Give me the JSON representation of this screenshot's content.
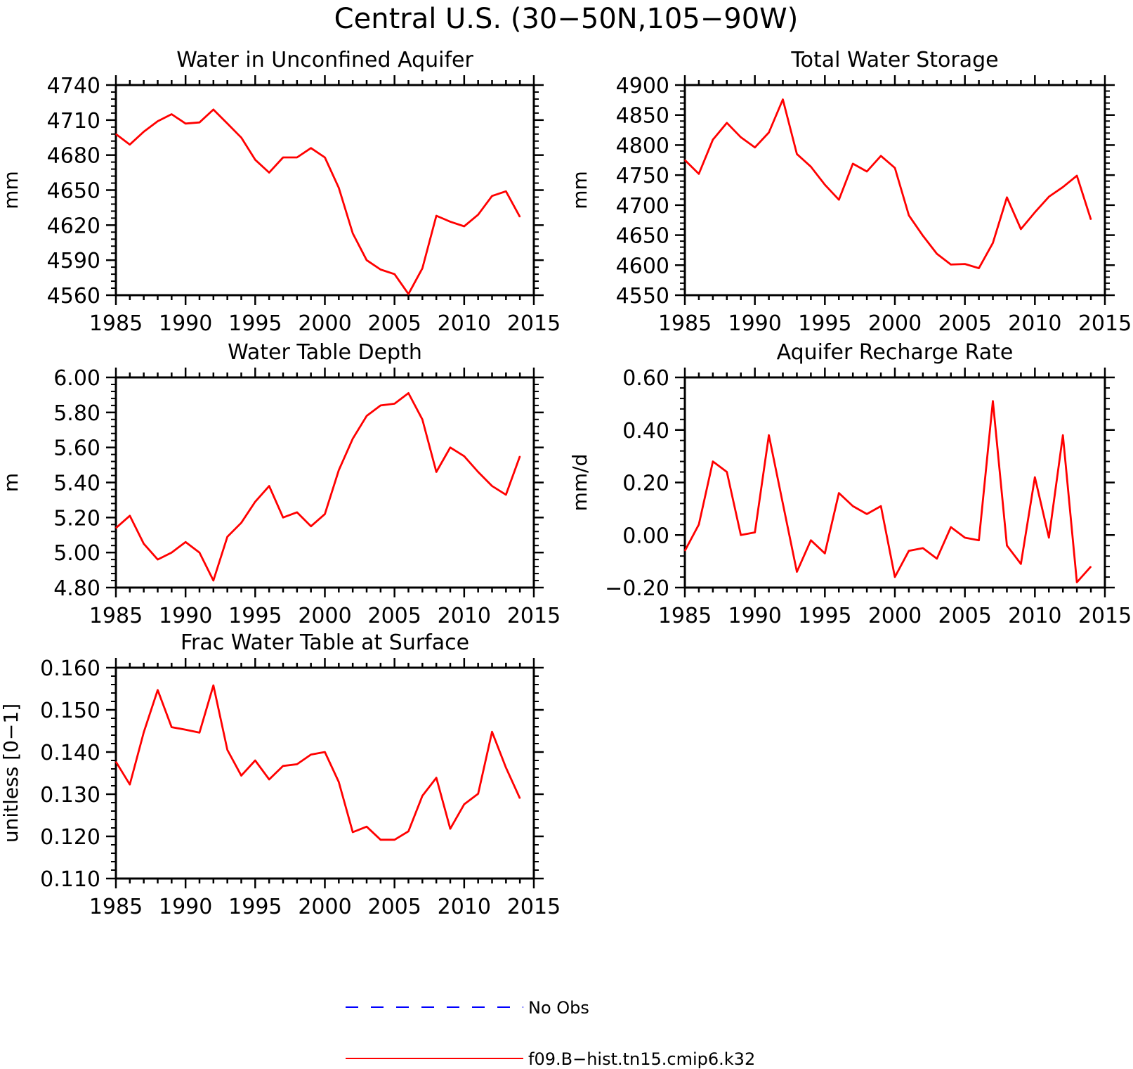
{
  "figure": {
    "title": "Central U.S. (30−50N,105−90W)"
  },
  "legend": {
    "entries": [
      {
        "label": "No Obs",
        "color": "#0000ff",
        "style": "dashed"
      },
      {
        "label": "f09.B−hist.tn15.cmip6.k32",
        "color": "#ff0000",
        "style": "solid"
      }
    ]
  },
  "chart_data": [
    {
      "type": "line",
      "title": "Water in Unconfined Aquifer",
      "ylabel": "mm",
      "xlim": [
        1985,
        2015
      ],
      "ylim": [
        4560,
        4740
      ],
      "xticks": [
        "1985",
        "1990",
        "1995",
        "2000",
        "2005",
        "2010",
        "2015"
      ],
      "yticks": [
        "4560",
        "4590",
        "4620",
        "4650",
        "4680",
        "4710",
        "4740"
      ],
      "x": [
        1985,
        1986,
        1987,
        1988,
        1989,
        1990,
        1991,
        1992,
        1993,
        1994,
        1995,
        1996,
        1997,
        1998,
        1999,
        2000,
        2001,
        2002,
        2003,
        2004,
        2005,
        2006,
        2007,
        2008,
        2009,
        2010,
        2011,
        2012,
        2013,
        2014
      ],
      "series": [
        {
          "name": "f09.B−hist.tn15.cmip6.k32",
          "color": "#ff0000",
          "values": [
            4698,
            4689,
            4700,
            4709,
            4715,
            4707,
            4708,
            4719,
            4707,
            4695,
            4676,
            4665,
            4678,
            4678,
            4686,
            4678,
            4652,
            4613,
            4590,
            4582,
            4578,
            4561,
            4583,
            4628,
            4623,
            4619,
            4629,
            4645,
            4649,
            4627
          ]
        }
      ]
    },
    {
      "type": "line",
      "title": "Total Water Storage",
      "ylabel": "mm",
      "xlim": [
        1985,
        2015
      ],
      "ylim": [
        4550,
        4900
      ],
      "xticks": [
        "1985",
        "1990",
        "1995",
        "2000",
        "2005",
        "2010",
        "2015"
      ],
      "yticks": [
        "4550",
        "4600",
        "4650",
        "4700",
        "4750",
        "4800",
        "4850",
        "4900"
      ],
      "x": [
        1985,
        1986,
        1987,
        1988,
        1989,
        1990,
        1991,
        1992,
        1993,
        1994,
        1995,
        1996,
        1997,
        1998,
        1999,
        2000,
        2001,
        2002,
        2003,
        2004,
        2005,
        2006,
        2007,
        2008,
        2009,
        2010,
        2011,
        2012,
        2013,
        2014
      ],
      "series": [
        {
          "name": "f09.B−hist.tn15.cmip6.k32",
          "color": "#ff0000",
          "values": [
            4775,
            4752,
            4809,
            4837,
            4813,
            4796,
            4821,
            4876,
            4785,
            4764,
            4734,
            4709,
            4769,
            4756,
            4782,
            4762,
            4683,
            4649,
            4619,
            4601,
            4602,
            4595,
            4637,
            4713,
            4660,
            4688,
            4714,
            4730,
            4749,
            4676
          ]
        }
      ]
    },
    {
      "type": "line",
      "title": "Water Table Depth",
      "ylabel": "m",
      "xlim": [
        1985,
        2015
      ],
      "ylim": [
        4.8,
        6.0
      ],
      "xticks": [
        "1985",
        "1990",
        "1995",
        "2000",
        "2005",
        "2010",
        "2015"
      ],
      "yticks": [
        "4.80",
        "5.00",
        "5.20",
        "5.40",
        "5.60",
        "5.80",
        "6.00"
      ],
      "x": [
        1985,
        1986,
        1987,
        1988,
        1989,
        1990,
        1991,
        1992,
        1993,
        1994,
        1995,
        1996,
        1997,
        1998,
        1999,
        2000,
        2001,
        2002,
        2003,
        2004,
        2005,
        2006,
        2007,
        2008,
        2009,
        2010,
        2011,
        2012,
        2013,
        2014
      ],
      "series": [
        {
          "name": "f09.B−hist.tn15.cmip6.k32",
          "color": "#ff0000",
          "values": [
            5.14,
            5.21,
            5.05,
            4.96,
            5.0,
            5.06,
            5.0,
            4.84,
            5.09,
            5.17,
            5.29,
            5.38,
            5.2,
            5.23,
            5.15,
            5.22,
            5.47,
            5.65,
            5.78,
            5.84,
            5.85,
            5.91,
            5.76,
            5.46,
            5.6,
            5.55,
            5.46,
            5.38,
            5.33,
            5.55
          ]
        }
      ]
    },
    {
      "type": "line",
      "title": "Aquifer Recharge Rate",
      "ylabel": "mm/d",
      "xlim": [
        1985,
        2015
      ],
      "ylim": [
        -0.2,
        0.6
      ],
      "xticks": [
        "1985",
        "1990",
        "1995",
        "2000",
        "2005",
        "2010",
        "2015"
      ],
      "yticks": [
        "−0.20",
        "0.00",
        "0.20",
        "0.40",
        "0.60"
      ],
      "x": [
        1985,
        1986,
        1987,
        1988,
        1989,
        1990,
        1991,
        1992,
        1993,
        1994,
        1995,
        1996,
        1997,
        1998,
        1999,
        2000,
        2001,
        2002,
        2003,
        2004,
        2005,
        2006,
        2007,
        2008,
        2009,
        2010,
        2011,
        2012,
        2013,
        2014
      ],
      "series": [
        {
          "name": "f09.B−hist.tn15.cmip6.k32",
          "color": "#ff0000",
          "values": [
            -0.06,
            0.04,
            0.28,
            0.24,
            0.0,
            0.01,
            0.38,
            0.12,
            -0.14,
            -0.02,
            -0.07,
            0.16,
            0.11,
            0.08,
            0.11,
            -0.16,
            -0.06,
            -0.05,
            -0.09,
            0.03,
            -0.01,
            -0.02,
            0.51,
            -0.04,
            -0.11,
            0.22,
            -0.01,
            0.38,
            -0.18,
            -0.12
          ]
        }
      ]
    },
    {
      "type": "line",
      "title": "Frac Water Table at Surface",
      "ylabel": "unitless [0−1]",
      "xlim": [
        1985,
        2015
      ],
      "ylim": [
        0.11,
        0.16
      ],
      "xticks": [
        "1985",
        "1990",
        "1995",
        "2000",
        "2005",
        "2010",
        "2015"
      ],
      "yticks": [
        "0.110",
        "0.120",
        "0.130",
        "0.140",
        "0.150",
        "0.160"
      ],
      "x": [
        1985,
        1986,
        1987,
        1988,
        1989,
        1990,
        1991,
        1992,
        1993,
        1994,
        1995,
        1996,
        1997,
        1998,
        1999,
        2000,
        2001,
        2002,
        2003,
        2004,
        2005,
        2006,
        2007,
        2008,
        2009,
        2010,
        2011,
        2012,
        2013,
        2014
      ],
      "series": [
        {
          "name": "f09.B−hist.tn15.cmip6.k32",
          "color": "#ff0000",
          "values": [
            0.1377,
            0.1323,
            0.1447,
            0.1547,
            0.1459,
            0.1453,
            0.1446,
            0.1558,
            0.1405,
            0.1344,
            0.138,
            0.1335,
            0.1367,
            0.1371,
            0.1394,
            0.14,
            0.1329,
            0.121,
            0.1223,
            0.1192,
            0.1192,
            0.1212,
            0.1296,
            0.1339,
            0.1218,
            0.1276,
            0.1301,
            0.1448,
            0.1363,
            0.129
          ]
        }
      ]
    }
  ]
}
